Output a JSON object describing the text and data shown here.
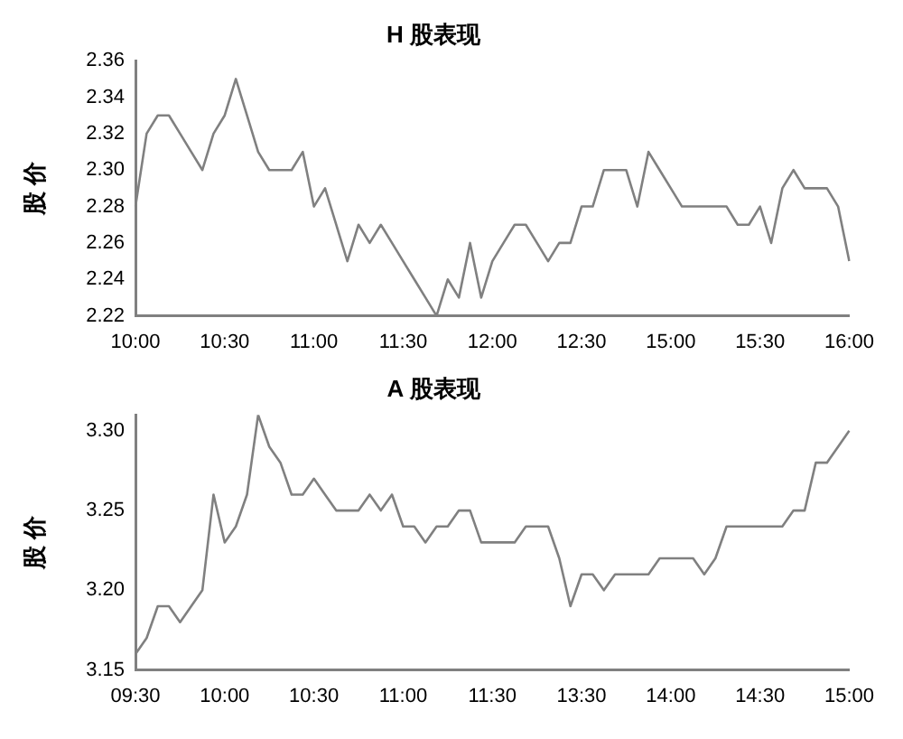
{
  "chart_data": [
    {
      "type": "line",
      "title": "H 股表现",
      "ylabel": "股 价",
      "categories": [
        "10:00",
        null,
        null,
        null,
        null,
        null,
        null,
        null,
        "10:30",
        null,
        null,
        null,
        null,
        null,
        null,
        null,
        "11:00",
        null,
        null,
        null,
        null,
        null,
        null,
        null,
        "11:30",
        null,
        null,
        null,
        null,
        null,
        null,
        null,
        "12:00",
        null,
        null,
        null,
        null,
        null,
        null,
        null,
        "12:30",
        null,
        null,
        null,
        null,
        null,
        null,
        null,
        "15:00",
        null,
        null,
        null,
        null,
        null,
        null,
        null,
        "15:30",
        null,
        null,
        null,
        null,
        null,
        null,
        null,
        "16:00"
      ],
      "series": [
        {
          "color": "#808080",
          "values": [
            2.28,
            2.32,
            2.33,
            2.33,
            2.32,
            2.31,
            2.3,
            2.32,
            2.33,
            2.35,
            2.33,
            2.31,
            2.3,
            2.3,
            2.3,
            2.31,
            2.28,
            2.29,
            2.27,
            2.25,
            2.27,
            2.26,
            2.27,
            2.26,
            2.25,
            2.24,
            2.23,
            2.22,
            2.24,
            2.23,
            2.26,
            2.23,
            2.25,
            2.26,
            2.27,
            2.27,
            2.26,
            2.25,
            2.26,
            2.26,
            2.28,
            2.28,
            2.3,
            2.3,
            2.3,
            2.28,
            2.31,
            2.3,
            2.29,
            2.28,
            2.28,
            2.28,
            2.28,
            2.28,
            2.27,
            2.27,
            2.28,
            2.26,
            2.29,
            2.3,
            2.29,
            2.29,
            2.29,
            2.28,
            2.25
          ]
        }
      ],
      "ylim": [
        2.22,
        2.36
      ],
      "yticks": [
        2.22,
        2.24,
        2.26,
        2.28,
        {
          "value": 2.3,
          "label": "2.30"
        },
        2.32,
        2.34,
        2.36
      ],
      "grid": false,
      "legend": false,
      "marker": "none",
      "line_style": "solid"
    },
    {
      "type": "line",
      "title": "A 股表现",
      "ylabel": "股 价",
      "categories": [
        "09:30",
        null,
        null,
        null,
        null,
        null,
        null,
        null,
        "10:00",
        null,
        null,
        null,
        null,
        null,
        null,
        null,
        "10:30",
        null,
        null,
        null,
        null,
        null,
        null,
        null,
        "11:00",
        null,
        null,
        null,
        null,
        null,
        null,
        null,
        "11:30",
        null,
        null,
        null,
        null,
        null,
        null,
        null,
        "13:30",
        null,
        null,
        null,
        null,
        null,
        null,
        null,
        "14:00",
        null,
        null,
        null,
        null,
        null,
        null,
        null,
        "14:30",
        null,
        null,
        null,
        null,
        null,
        null,
        null,
        "15:00"
      ],
      "series": [
        {
          "color": "#808080",
          "values": [
            3.16,
            3.17,
            3.19,
            3.19,
            3.18,
            3.19,
            3.2,
            3.26,
            3.23,
            3.24,
            3.26,
            3.31,
            3.29,
            3.28,
            3.26,
            3.26,
            3.27,
            3.26,
            3.25,
            3.25,
            3.25,
            3.26,
            3.25,
            3.26,
            3.24,
            3.24,
            3.23,
            3.24,
            3.24,
            3.25,
            3.25,
            3.23,
            3.23,
            3.23,
            3.23,
            3.24,
            3.24,
            3.24,
            3.22,
            3.19,
            3.21,
            3.21,
            3.2,
            3.21,
            3.21,
            3.21,
            3.21,
            3.22,
            3.22,
            3.22,
            3.22,
            3.21,
            3.22,
            3.24,
            3.24,
            3.24,
            3.24,
            3.24,
            3.24,
            3.25,
            3.25,
            3.28,
            3.28,
            3.29,
            3.3
          ]
        }
      ],
      "ylim": [
        3.15,
        3.31
      ],
      "yticks": [
        3.15,
        {
          "value": 3.2,
          "label": "3.20"
        },
        3.25,
        {
          "value": 3.3,
          "label": "3.30"
        }
      ],
      "grid": false,
      "legend": false,
      "marker": "none",
      "line_style": "solid"
    }
  ]
}
